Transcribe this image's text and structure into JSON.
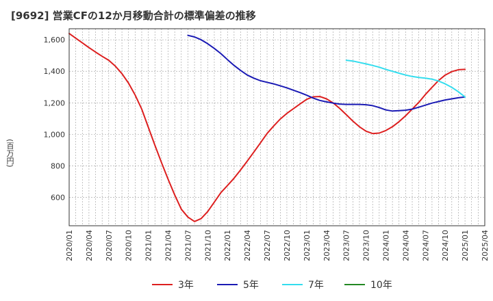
{
  "chart_data": {
    "type": "line",
    "title": "[9692]  営業CFの12か月移動合計の標準偏差の推移",
    "ylabel": "(百万円)",
    "xlabel": "",
    "ylim": [
      420,
      1670
    ],
    "yticks": [
      600,
      800,
      1000,
      1200,
      1400,
      1600
    ],
    "ytick_labels": [
      "600",
      "800",
      "1,000",
      "1,200",
      "1,400",
      "1,600"
    ],
    "xticks": [
      "2020/01",
      "2020/04",
      "2020/07",
      "2020/10",
      "2021/01",
      "2021/04",
      "2021/07",
      "2021/10",
      "2022/01",
      "2022/04",
      "2022/07",
      "2022/10",
      "2023/01",
      "2023/04",
      "2023/07",
      "2023/10",
      "2024/01",
      "2024/04",
      "2024/07",
      "2024/10",
      "2025/01",
      "2025/04"
    ],
    "grid": true,
    "legend_position": "bottom",
    "series": [
      {
        "name": "3年",
        "color": "#dd1f1f",
        "x": [
          "2020/01",
          "2020/02",
          "2020/03",
          "2020/04",
          "2020/05",
          "2020/06",
          "2020/07",
          "2020/08",
          "2020/09",
          "2020/10",
          "2020/11",
          "2020/12",
          "2021/01",
          "2021/02",
          "2021/03",
          "2021/04",
          "2021/05",
          "2021/06",
          "2021/07",
          "2021/08",
          "2021/09",
          "2021/10",
          "2021/11",
          "2021/12",
          "2022/01",
          "2022/02",
          "2022/03",
          "2022/04",
          "2022/05",
          "2022/06",
          "2022/07",
          "2022/08",
          "2022/09",
          "2022/10",
          "2022/11",
          "2022/12",
          "2023/01",
          "2023/02",
          "2023/03",
          "2023/04",
          "2023/05",
          "2023/06",
          "2023/07",
          "2023/08",
          "2023/09",
          "2023/10",
          "2023/11",
          "2023/12",
          "2024/01",
          "2024/02",
          "2024/03",
          "2024/04",
          "2024/05",
          "2024/06",
          "2024/07",
          "2024/08",
          "2024/09",
          "2024/10",
          "2024/11",
          "2024/12",
          "2025/01"
        ],
        "values": [
          1640,
          1610,
          1580,
          1550,
          1522,
          1495,
          1470,
          1433,
          1385,
          1325,
          1250,
          1160,
          1045,
          930,
          820,
          715,
          615,
          525,
          475,
          447,
          465,
          510,
          570,
          630,
          675,
          722,
          775,
          830,
          888,
          946,
          1005,
          1053,
          1097,
          1133,
          1163,
          1193,
          1222,
          1238,
          1240,
          1225,
          1200,
          1165,
          1125,
          1084,
          1048,
          1020,
          1005,
          1008,
          1024,
          1048,
          1080,
          1118,
          1160,
          1203,
          1253,
          1298,
          1342,
          1376,
          1398,
          1410,
          1412
        ]
      },
      {
        "name": "5年",
        "color": "#1a1ab4",
        "x": [
          "2021/07",
          "2021/08",
          "2021/09",
          "2021/10",
          "2021/11",
          "2021/12",
          "2022/01",
          "2022/02",
          "2022/03",
          "2022/04",
          "2022/05",
          "2022/06",
          "2022/07",
          "2022/08",
          "2022/09",
          "2022/10",
          "2022/11",
          "2022/12",
          "2023/01",
          "2023/02",
          "2023/03",
          "2023/04",
          "2023/05",
          "2023/06",
          "2023/07",
          "2023/08",
          "2023/09",
          "2023/10",
          "2023/11",
          "2023/12",
          "2024/01",
          "2024/02",
          "2024/03",
          "2024/04",
          "2024/05",
          "2024/06",
          "2024/07",
          "2024/08",
          "2024/09",
          "2024/10",
          "2024/11",
          "2024/12",
          "2025/01"
        ],
        "values": [
          1628,
          1618,
          1600,
          1575,
          1545,
          1512,
          1474,
          1437,
          1405,
          1376,
          1356,
          1340,
          1330,
          1320,
          1308,
          1295,
          1280,
          1265,
          1248,
          1230,
          1215,
          1206,
          1198,
          1192,
          1190,
          1190,
          1190,
          1188,
          1182,
          1170,
          1155,
          1148,
          1150,
          1153,
          1160,
          1172,
          1185,
          1198,
          1208,
          1218,
          1225,
          1232,
          1237
        ]
      },
      {
        "name": "7年",
        "color": "#33ddee",
        "x": [
          "2023/07",
          "2023/08",
          "2023/09",
          "2023/10",
          "2023/11",
          "2023/12",
          "2024/01",
          "2024/02",
          "2024/03",
          "2024/04",
          "2024/05",
          "2024/06",
          "2024/07",
          "2024/08",
          "2024/09",
          "2024/10",
          "2024/11",
          "2024/12",
          "2025/01"
        ],
        "values": [
          1470,
          1465,
          1456,
          1447,
          1437,
          1426,
          1412,
          1400,
          1388,
          1376,
          1367,
          1361,
          1356,
          1350,
          1338,
          1320,
          1298,
          1270,
          1237
        ]
      },
      {
        "name": "10年",
        "color": "#228822",
        "x": [],
        "values": []
      }
    ]
  }
}
